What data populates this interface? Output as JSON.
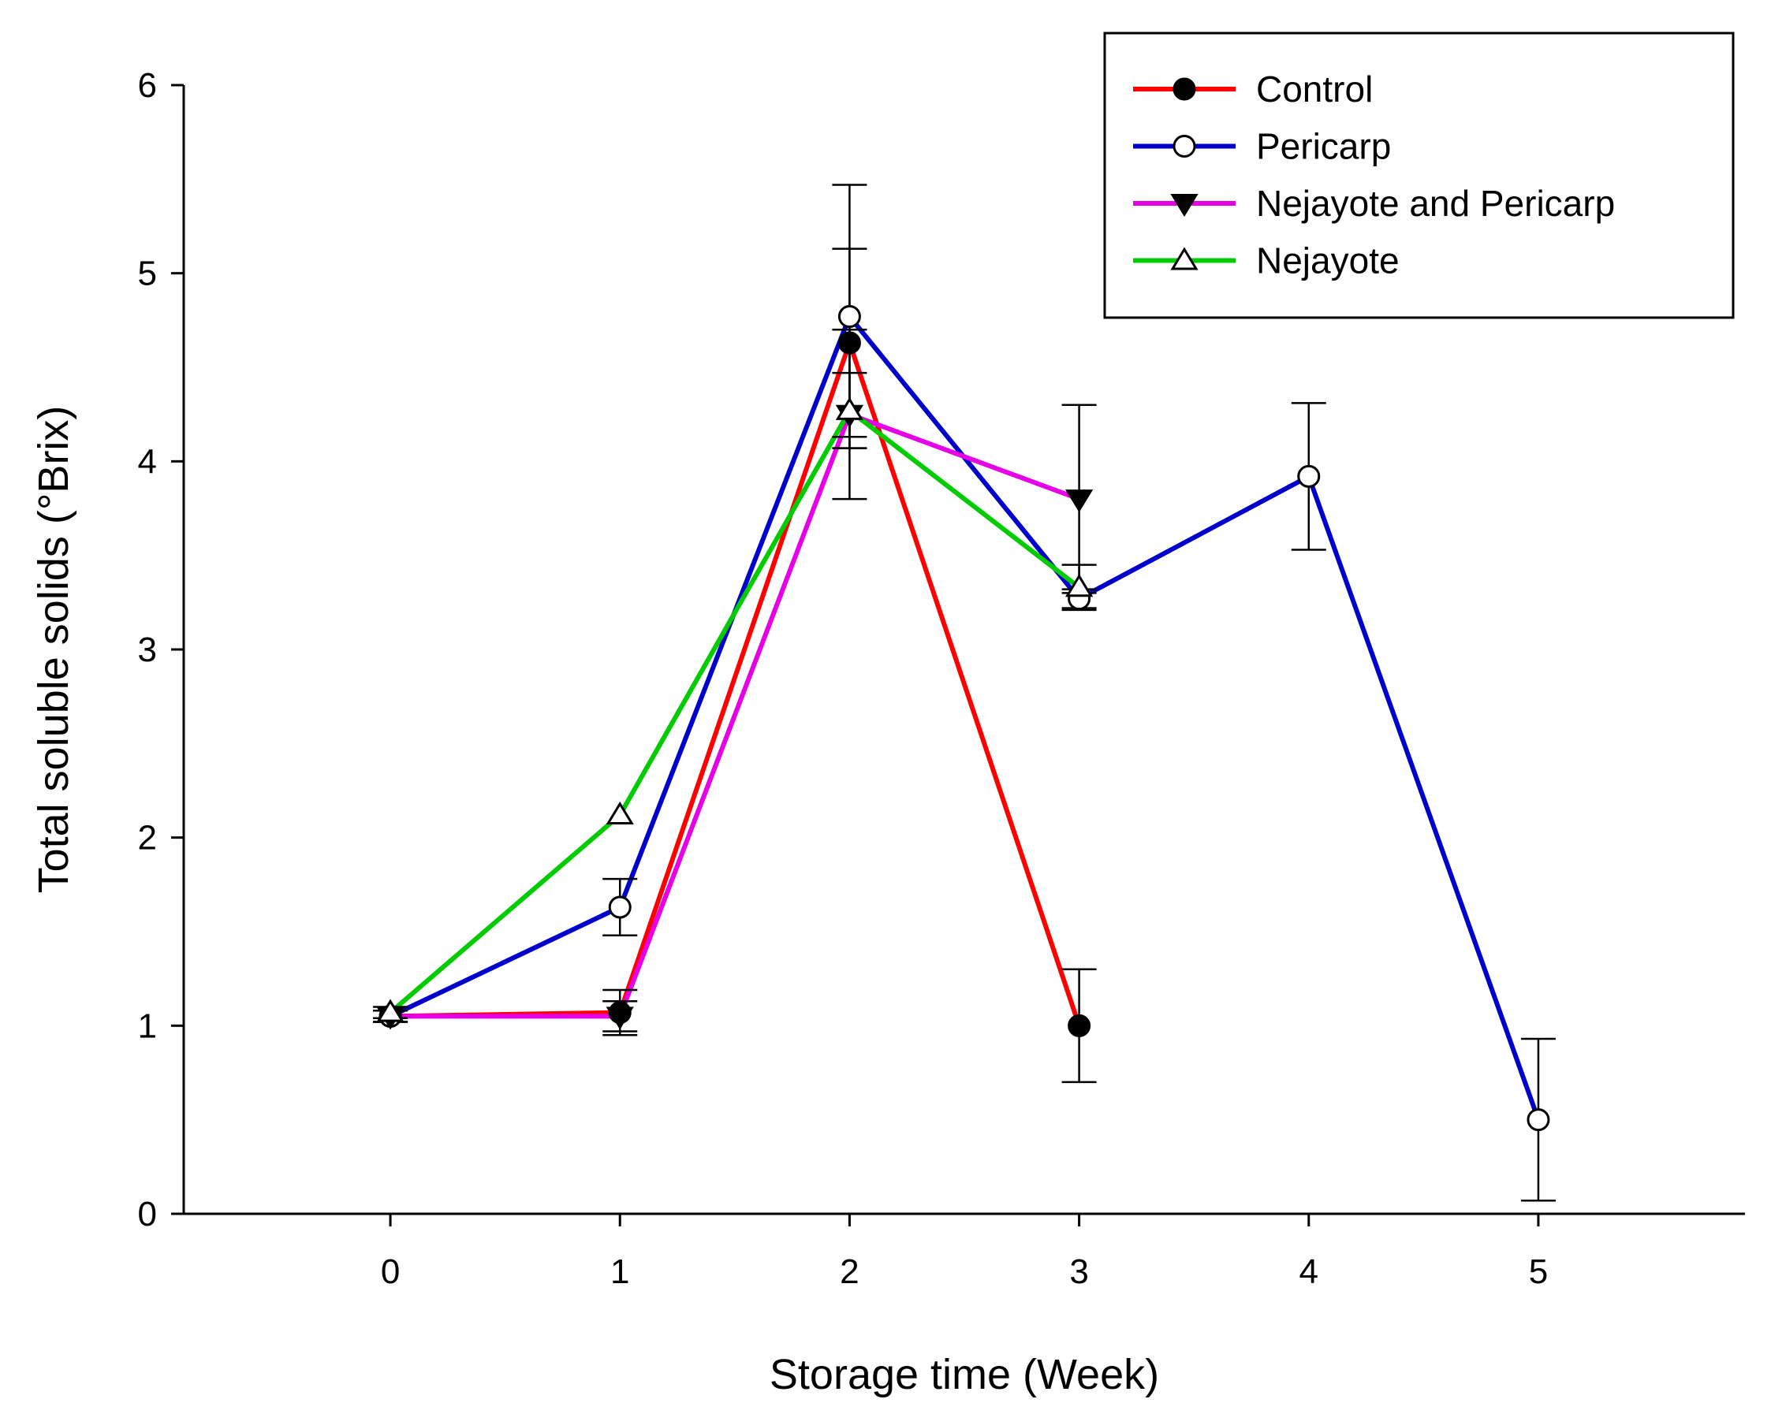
{
  "chart_data": {
    "type": "line",
    "title": "",
    "xlabel": "Storage time (Week)",
    "ylabel": "Total soluble solids (°Brix)",
    "xlim": [
      -0.9,
      5.9
    ],
    "ylim": [
      0,
      6
    ],
    "x_ticks": [
      "0",
      "1",
      "2",
      "3",
      "4",
      "5"
    ],
    "y_ticks": [
      "0",
      "1",
      "2",
      "3",
      "4",
      "5",
      "6"
    ],
    "grid": false,
    "legend_position": "top-right",
    "series": [
      {
        "name": "Control",
        "color": "#ff0000",
        "marker": "filled-circle",
        "points": [
          {
            "x": 0,
            "y": 1.05,
            "err": 0.03
          },
          {
            "x": 1,
            "y": 1.07,
            "err": 0.12
          },
          {
            "x": 2,
            "y": 4.63,
            "err": 0.5
          },
          {
            "x": 3,
            "y": 1.0,
            "err": 0.3
          }
        ]
      },
      {
        "name": "Pericarp",
        "color": "#0000cc",
        "marker": "open-circle",
        "points": [
          {
            "x": 0,
            "y": 1.05,
            "err": 0.03
          },
          {
            "x": 1,
            "y": 1.63,
            "err": 0.15
          },
          {
            "x": 2,
            "y": 4.77,
            "err": 0.7
          },
          {
            "x": 3,
            "y": 3.27,
            "err": 0.05
          },
          {
            "x": 4,
            "y": 3.92,
            "err": 0.39
          },
          {
            "x": 5,
            "y": 0.5,
            "err": 0.43
          }
        ]
      },
      {
        "name": "Nejayote and Pericarp",
        "color": "#e600e6",
        "marker": "filled-triangle-down",
        "points": [
          {
            "x": 0,
            "y": 1.05,
            "err": 0.03
          },
          {
            "x": 1,
            "y": 1.05,
            "err": 0.08
          },
          {
            "x": 2,
            "y": 4.25,
            "err": 0.45
          },
          {
            "x": 3,
            "y": 3.8,
            "err": 0.5
          }
        ]
      },
      {
        "name": "Nejayote",
        "color": "#00cc00",
        "marker": "open-triangle-up",
        "points": [
          {
            "x": 0,
            "y": 1.07,
            "err": 0.03
          },
          {
            "x": 1,
            "y": 2.12,
            "err": 0.0
          },
          {
            "x": 2,
            "y": 4.27,
            "err": 0.2
          },
          {
            "x": 3,
            "y": 3.33,
            "err": 0.12
          }
        ]
      }
    ]
  }
}
